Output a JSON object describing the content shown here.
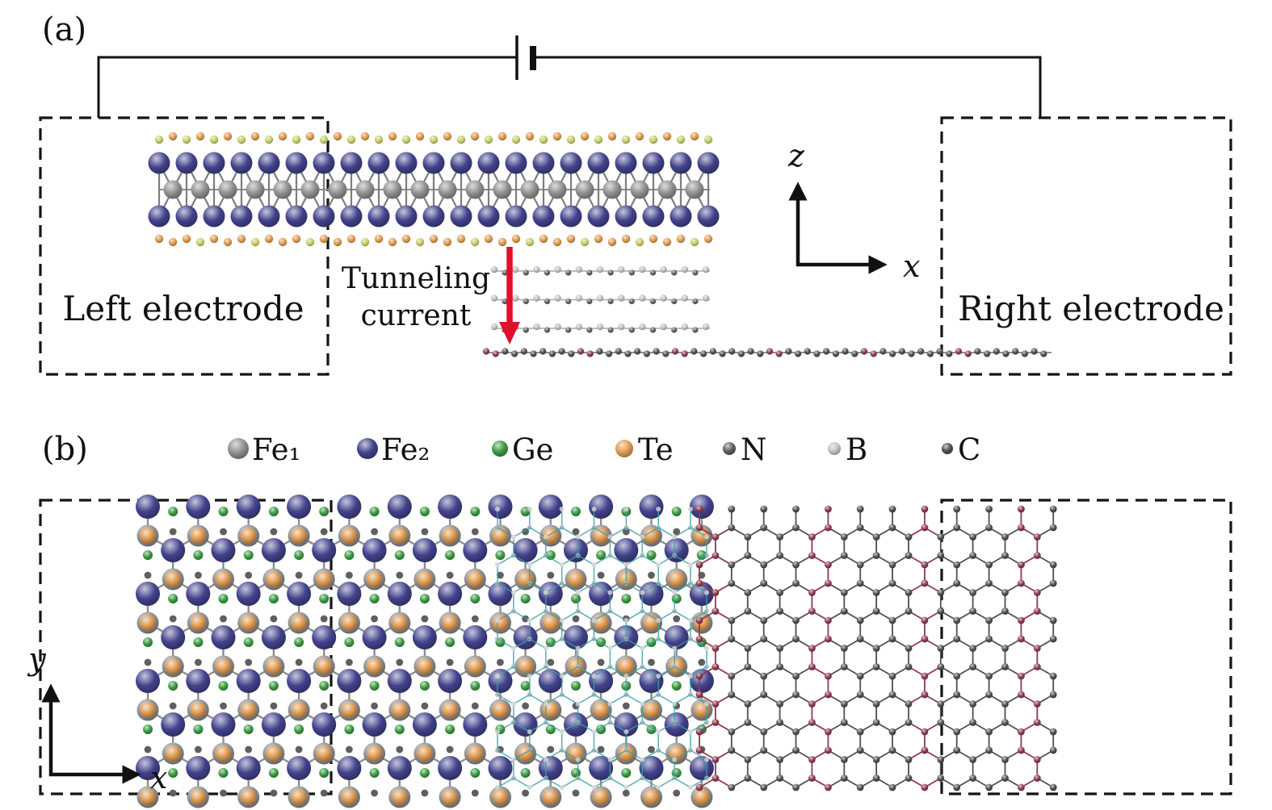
{
  "figure": {
    "panel_a": {
      "label": "(a)",
      "left_electrode_label": "Left electrode",
      "right_electrode_label": "Right electrode",
      "tunneling_label_line1": "Tunneling",
      "tunneling_label_line2": "current",
      "axis_up_label": "z",
      "axis_right_label": "x"
    },
    "panel_b": {
      "label": "(b)",
      "axis_up_label": "y",
      "axis_right_label": "x",
      "legend": [
        {
          "key": "fe1",
          "label": "Fe₁"
        },
        {
          "key": "fe2",
          "label": "Fe₂"
        },
        {
          "key": "ge",
          "label": "Ge"
        },
        {
          "key": "te",
          "label": "Te"
        },
        {
          "key": "n",
          "label": "N"
        },
        {
          "key": "b",
          "label": "B"
        },
        {
          "key": "c",
          "label": "C"
        }
      ]
    }
  },
  "colors": {
    "fe1": "#8f8f8f",
    "fe2": "#42428c",
    "ge": "#3a9a40",
    "te": "#e09a50",
    "n": "#5f5f5f",
    "b": "#c2c2c2",
    "c": "#4f4f4f",
    "carbon_alt": "#8c3a50",
    "hbn_teal": "#3aa0a5",
    "olive": "#c8ce6a",
    "bond": "#8a8a8a",
    "wire": "#111111",
    "arrow_red": "#e0102c",
    "text_red": "#cc1133"
  }
}
